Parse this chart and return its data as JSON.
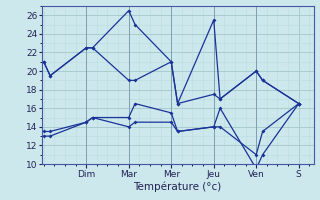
{
  "xlabel": "Température (°c)",
  "background_color": "#cce8ec",
  "grid_major_color": "#aacccc",
  "grid_minor_color": "#bbdddd",
  "line_color": "#1a3399",
  "ylim": [
    10,
    27
  ],
  "yticks": [
    10,
    12,
    14,
    16,
    18,
    20,
    22,
    24,
    26
  ],
  "day_labels": [
    "Dim",
    "Mar",
    "Mer",
    "Jeu",
    "Ven",
    "S"
  ],
  "day_positions": [
    1.0,
    2.0,
    3.0,
    4.0,
    5.0,
    6.0
  ],
  "xlim": [
    -0.05,
    6.35
  ],
  "series": [
    {
      "x": [
        0.0,
        0.15,
        1.0,
        1.15,
        2.0,
        2.15,
        3.0,
        3.15,
        4.0,
        4.15,
        5.0,
        5.15,
        6.0
      ],
      "y": [
        21.0,
        19.5,
        22.5,
        22.5,
        26.5,
        25.0,
        21.0,
        16.5,
        25.5,
        17.0,
        20.0,
        19.0,
        16.5
      ]
    },
    {
      "x": [
        0.0,
        0.15,
        1.0,
        1.15,
        2.0,
        2.15,
        3.0,
        3.15,
        4.0,
        4.15,
        5.0,
        5.15,
        6.0
      ],
      "y": [
        21.0,
        19.5,
        22.5,
        22.5,
        19.0,
        19.0,
        21.0,
        16.5,
        17.5,
        17.0,
        20.0,
        19.0,
        16.5
      ]
    },
    {
      "x": [
        0.0,
        0.15,
        1.0,
        1.15,
        2.0,
        2.15,
        3.0,
        3.15,
        4.0,
        4.15,
        5.0,
        5.15,
        6.0
      ],
      "y": [
        13.5,
        13.5,
        14.5,
        15.0,
        15.0,
        16.5,
        15.5,
        13.5,
        14.0,
        16.0,
        9.5,
        11.0,
        16.5
      ]
    },
    {
      "x": [
        0.0,
        0.15,
        1.0,
        1.15,
        2.0,
        2.15,
        3.0,
        3.15,
        4.0,
        4.15,
        5.0,
        5.15,
        6.0
      ],
      "y": [
        13.0,
        13.0,
        14.5,
        15.0,
        14.0,
        14.5,
        14.5,
        13.5,
        14.0,
        14.0,
        11.0,
        13.5,
        16.5
      ]
    }
  ]
}
